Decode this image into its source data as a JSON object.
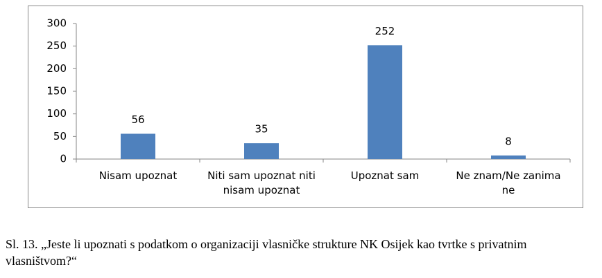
{
  "chart_data": {
    "type": "bar",
    "categories": [
      "Nisam upoznat",
      "Niti sam upoznat niti nisam upoznat",
      "Upoznat sam",
      "Ne znam/Ne zanima ne"
    ],
    "values": [
      56,
      35,
      252,
      8
    ],
    "color": "#4f81bd",
    "ylim": [
      0,
      300
    ],
    "yticks": [
      0,
      50,
      100,
      150,
      200,
      250,
      300
    ],
    "grid": false
  },
  "caption": "Sl. 13. „Jeste li upoznati s podatkom o organizaciji vlasničke strukture NK Osijek kao tvrtke s privatnim vlasništvom?“"
}
